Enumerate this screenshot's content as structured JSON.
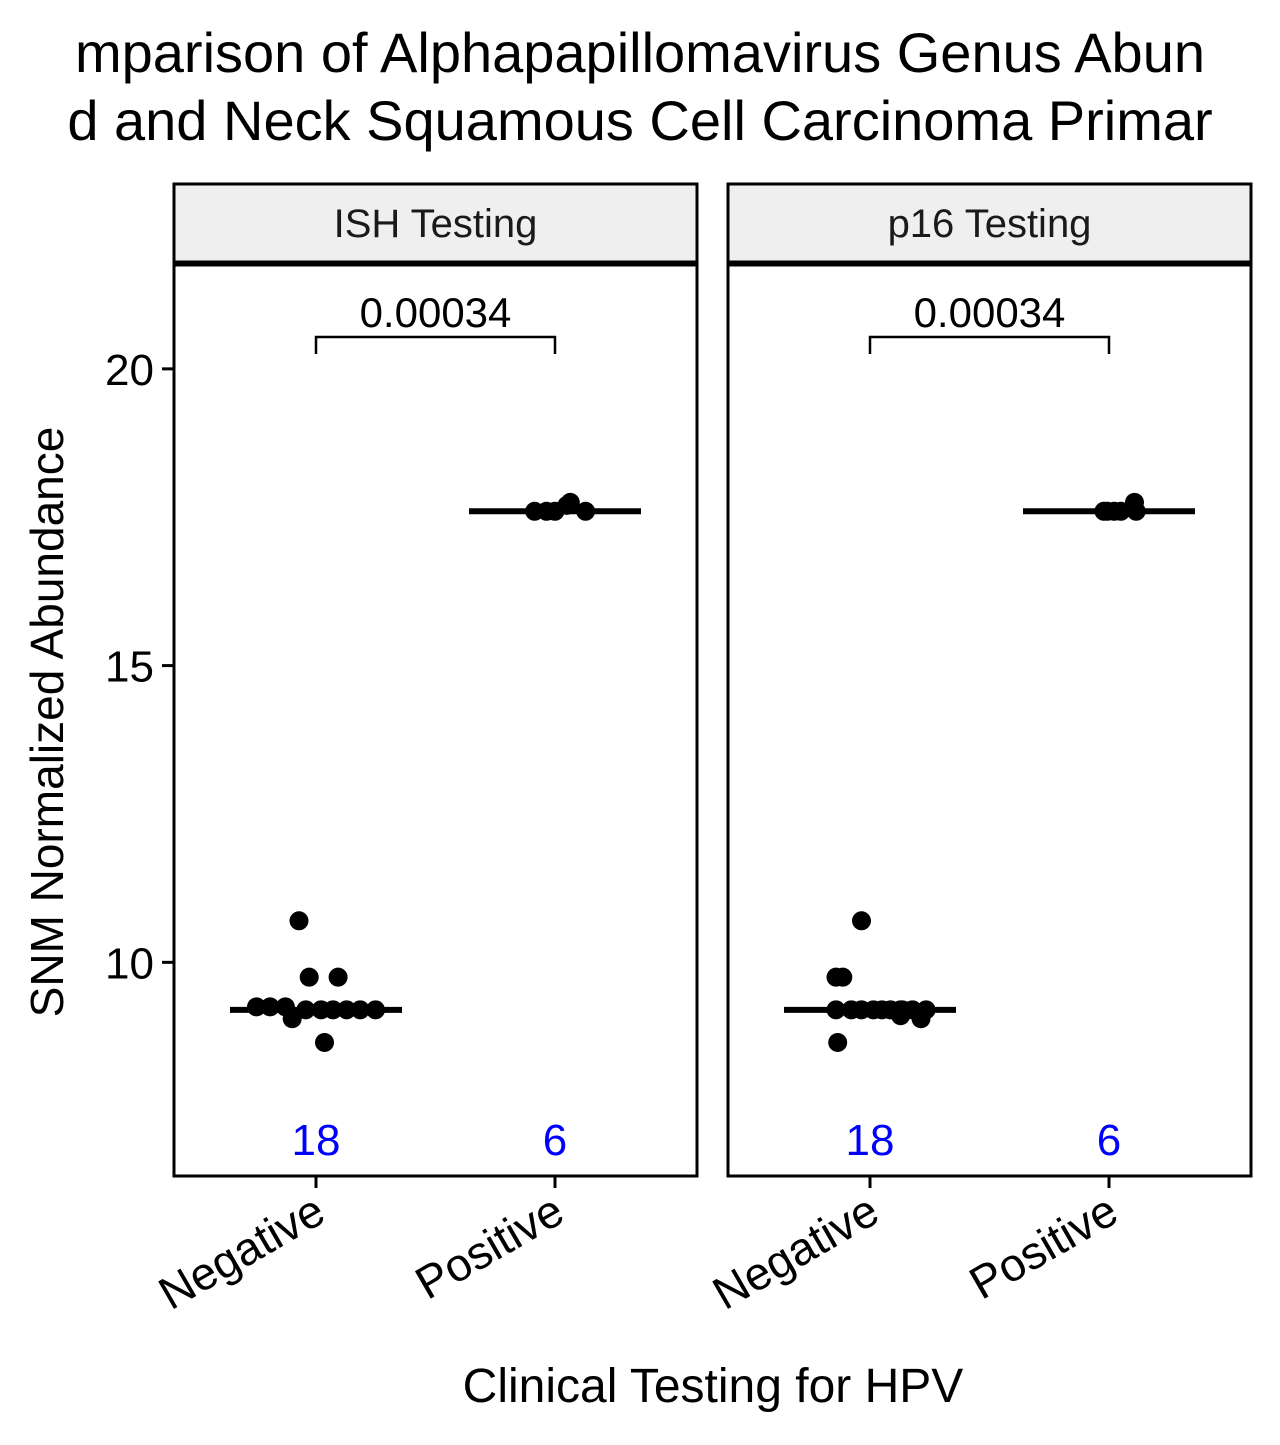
{
  "chart_data": {
    "type": "scatter",
    "title_lines": [
      "mparison of Alphapapillomavirus Genus Abun",
      "d and Neck Squamous Cell Carcinoma Primar"
    ],
    "xlabel": "Clinical Testing for HPV",
    "ylabel": "SNM Normalized Abundance",
    "ylim": [
      6.4,
      21.75
    ],
    "yticks": [
      10,
      15,
      20
    ],
    "categories": [
      "Negative",
      "Positive"
    ],
    "colors": {
      "points": "#000000",
      "counts": "#0000ff",
      "strip": "#efefef"
    },
    "panels": [
      {
        "strip_label": "ISH Testing",
        "p_value": "0.00034",
        "groups": [
          {
            "category": "Negative",
            "n": "18",
            "median": 9.2,
            "points": [
              [
                -0.1,
                10.7
              ],
              [
                -0.04,
                9.75
              ],
              [
                0.13,
                9.75
              ],
              [
                -0.35,
                9.25
              ],
              [
                -0.27,
                9.25
              ],
              [
                -0.18,
                9.25
              ],
              [
                -0.06,
                9.2
              ],
              [
                0.03,
                9.2
              ],
              [
                0.1,
                9.2
              ],
              [
                0.18,
                9.2
              ],
              [
                0.26,
                9.2
              ],
              [
                0.35,
                9.2
              ],
              [
                -0.14,
                9.05
              ],
              [
                0.05,
                8.65
              ]
            ]
          },
          {
            "category": "Positive",
            "n": "6",
            "median": 17.6,
            "points": [
              [
                -0.12,
                17.6
              ],
              [
                -0.05,
                17.6
              ],
              [
                0.0,
                17.6
              ],
              [
                0.07,
                17.7
              ],
              [
                0.09,
                17.75
              ],
              [
                0.18,
                17.6
              ]
            ]
          }
        ]
      },
      {
        "strip_label": "p16 Testing",
        "p_value": "0.00034",
        "groups": [
          {
            "category": "Negative",
            "n": "18",
            "median": 9.2,
            "points": [
              [
                -0.05,
                10.7
              ],
              [
                -0.2,
                9.75
              ],
              [
                -0.16,
                9.75
              ],
              [
                -0.2,
                9.2
              ],
              [
                -0.11,
                9.2
              ],
              [
                -0.05,
                9.2
              ],
              [
                0.02,
                9.2
              ],
              [
                0.07,
                9.2
              ],
              [
                0.12,
                9.2
              ],
              [
                0.19,
                9.2
              ],
              [
                0.25,
                9.2
              ],
              [
                0.33,
                9.2
              ],
              [
                0.18,
                9.1
              ],
              [
                0.18,
                9.2
              ],
              [
                0.18,
                9.15
              ],
              [
                0.3,
                9.05
              ],
              [
                -0.19,
                8.65
              ]
            ]
          },
          {
            "category": "Positive",
            "n": "6",
            "median": 17.6,
            "points": [
              [
                -0.03,
                17.6
              ],
              [
                -0.01,
                17.6
              ],
              [
                0.03,
                17.6
              ],
              [
                0.07,
                17.6
              ],
              [
                0.15,
                17.75
              ],
              [
                0.16,
                17.6
              ]
            ]
          }
        ]
      }
    ]
  }
}
